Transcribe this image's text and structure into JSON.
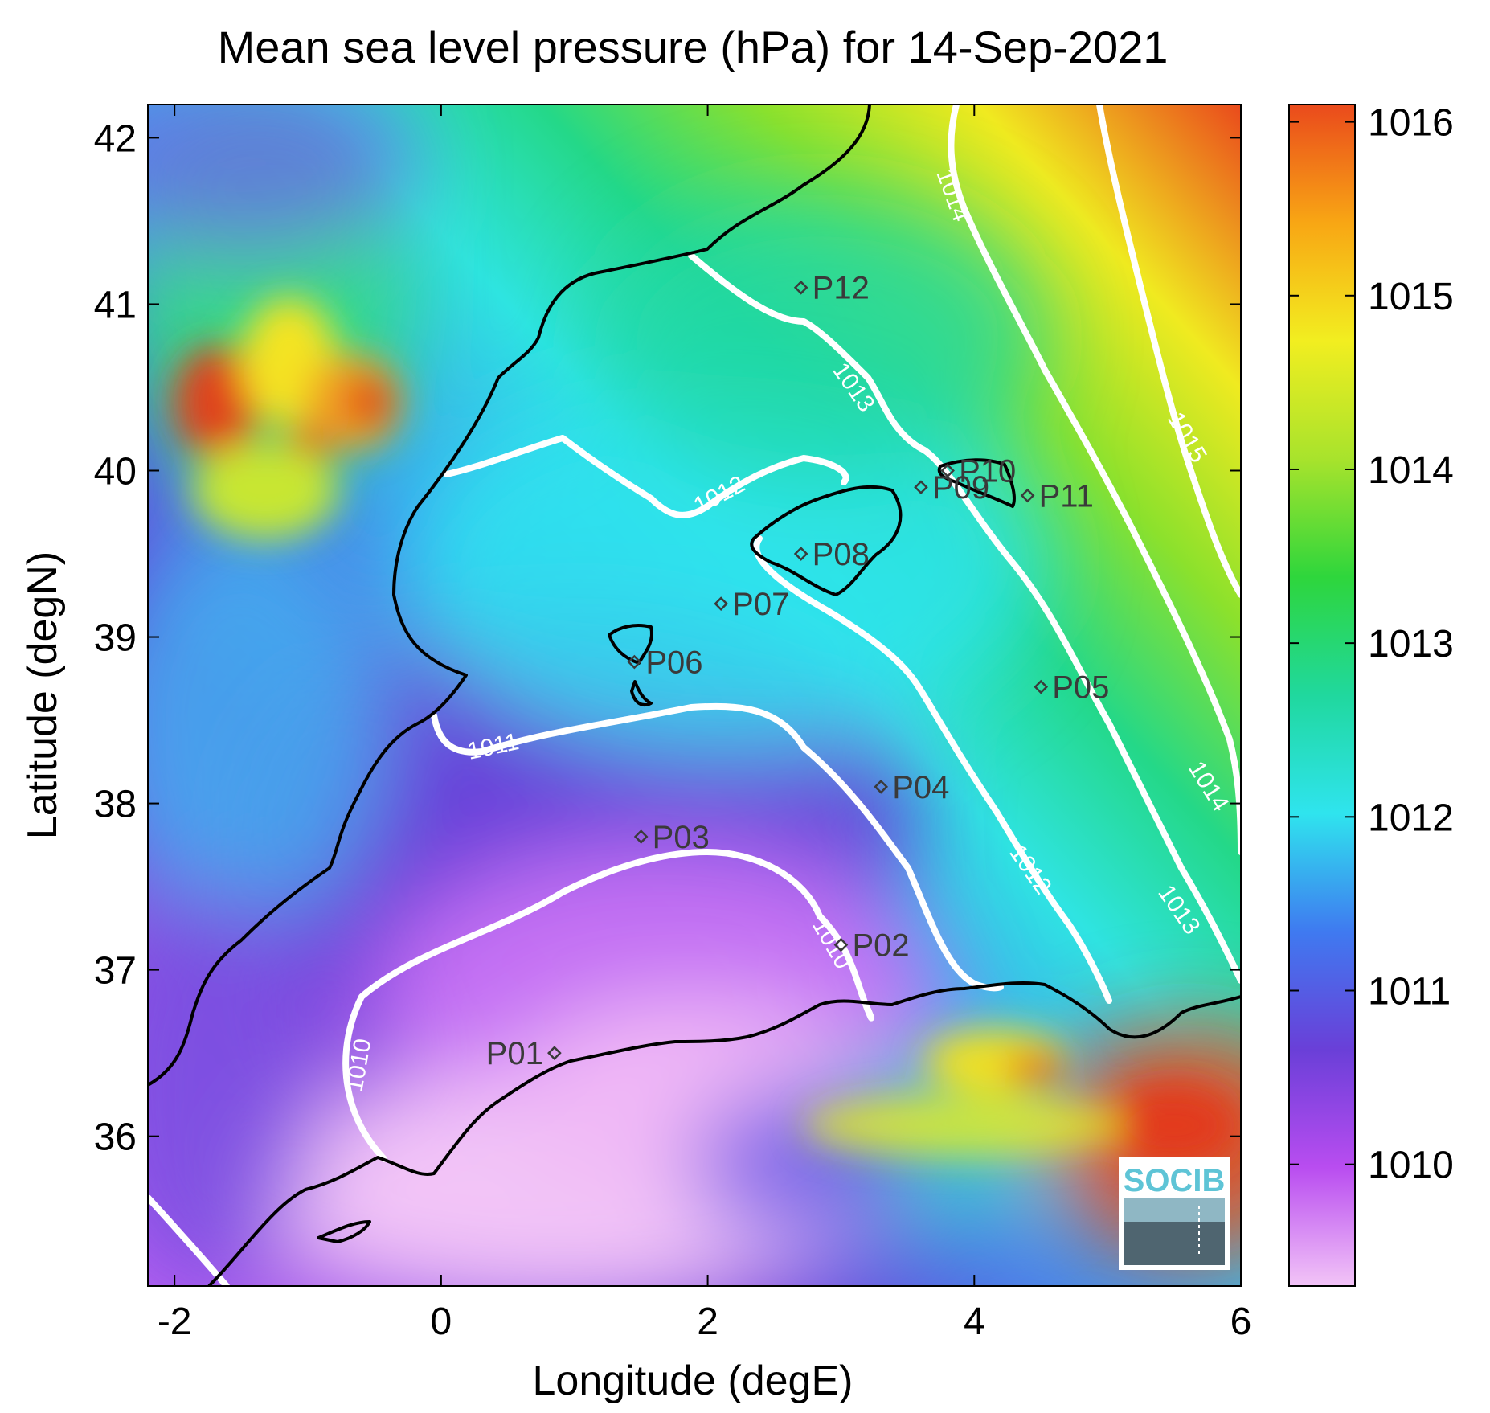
{
  "title": "Mean sea level pressure (hPa) for 14-Sep-2021",
  "xlabel": "Longitude (degE)",
  "ylabel": "Latitude (degN)",
  "x_ticks": [
    "-2",
    "0",
    "2",
    "4",
    "6"
  ],
  "y_ticks": [
    "36",
    "37",
    "38",
    "39",
    "40",
    "41",
    "42"
  ],
  "colorbar": {
    "ticks": [
      "1010",
      "1011",
      "1012",
      "1013",
      "1014",
      "1015",
      "1016"
    ],
    "range": [
      1009.3,
      1016.1
    ],
    "colors": [
      "#f2c4f7",
      "#b94df0",
      "#6a3fd8",
      "#3f7af0",
      "#2fe4ee",
      "#20d89e",
      "#2ed63c",
      "#a8e32c",
      "#f2ee20",
      "#f8a614",
      "#ea4a1c"
    ]
  },
  "contour_labels": [
    "1010",
    "1010",
    "1011",
    "1012",
    "1012",
    "1013",
    "1013",
    "1014",
    "1014",
    "1015"
  ],
  "stations": [
    "P01",
    "P02",
    "P03",
    "P04",
    "P05",
    "P06",
    "P07",
    "P08",
    "P09",
    "P10",
    "P11",
    "P12"
  ],
  "logo": {
    "text": "SOCIB"
  },
  "chart_data": {
    "type": "heatmap",
    "title": "Mean sea level pressure (hPa) for 14-Sep-2021",
    "xlabel": "Longitude (degE)",
    "ylabel": "Latitude (degN)",
    "xlim": [
      -2.2,
      6
    ],
    "ylim": [
      35.1,
      42.2
    ],
    "clim": [
      1009.3,
      1016.1
    ],
    "contour_levels": [
      1010,
      1011,
      1012,
      1013,
      1014,
      1015
    ],
    "stations": [
      {
        "name": "P01",
        "lon": 0.85,
        "lat": 36.5
      },
      {
        "name": "P02",
        "lon": 3.0,
        "lat": 37.15
      },
      {
        "name": "P03",
        "lon": 1.5,
        "lat": 37.8
      },
      {
        "name": "P04",
        "lon": 3.3,
        "lat": 38.1
      },
      {
        "name": "P05",
        "lon": 4.5,
        "lat": 38.7
      },
      {
        "name": "P06",
        "lon": 1.45,
        "lat": 38.85
      },
      {
        "name": "P07",
        "lon": 2.1,
        "lat": 39.2
      },
      {
        "name": "P08",
        "lon": 2.7,
        "lat": 39.5
      },
      {
        "name": "P09",
        "lon": 3.6,
        "lat": 39.9
      },
      {
        "name": "P10",
        "lon": 3.8,
        "lat": 40.0
      },
      {
        "name": "P11",
        "lon": 4.4,
        "lat": 39.85
      },
      {
        "name": "P12",
        "lon": 2.7,
        "lat": 41.1
      }
    ]
  }
}
